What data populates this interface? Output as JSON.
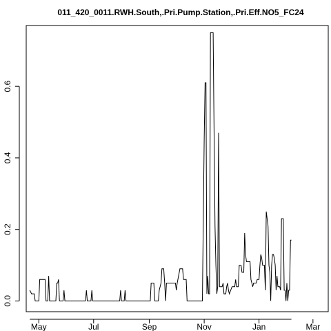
{
  "chart_data": {
    "type": "line",
    "title": "011_420_0011.RWH.South,.Pri.Pump.Station,.Pri.Eff.NO5_FC24",
    "xlabel": "",
    "ylabel": "",
    "x_axis": {
      "kind": "date",
      "range": [
        "2023-04-17",
        "2024-03-18"
      ],
      "ticks": [
        {
          "label": "May",
          "date": "2023-05-01"
        },
        {
          "label": "Jul",
          "date": "2023-07-01"
        },
        {
          "label": "Sep",
          "date": "2023-09-01"
        },
        {
          "label": "Nov",
          "date": "2023-11-01"
        },
        {
          "label": "Jan",
          "date": "2024-01-01"
        },
        {
          "label": "Mar",
          "date": "2024-03-01"
        }
      ]
    },
    "y_axis": {
      "range": [
        -0.03,
        0.77
      ],
      "ticks": [
        {
          "label": "0.0",
          "value": 0.0
        },
        {
          "label": "0.2",
          "value": 0.2
        },
        {
          "label": "0.4",
          "value": 0.4
        },
        {
          "label": "0.6",
          "value": 0.6
        }
      ]
    },
    "grid": false,
    "legend": "none",
    "series": [
      {
        "color": "#000000",
        "points": [
          [
            "2023-04-21",
            0.03
          ],
          [
            "2023-04-23",
            0.02
          ],
          [
            "2023-04-26",
            0.02
          ],
          [
            "2023-04-27",
            0.0
          ],
          [
            "2023-05-01",
            0.0
          ],
          [
            "2023-05-02",
            0.06
          ],
          [
            "2023-05-08",
            0.06
          ],
          [
            "2023-05-09",
            0.0
          ],
          [
            "2023-05-11",
            0.0
          ],
          [
            "2023-05-12",
            0.07
          ],
          [
            "2023-05-13",
            0.0
          ],
          [
            "2023-05-20",
            0.0
          ],
          [
            "2023-05-21",
            0.05
          ],
          [
            "2023-05-22",
            0.05
          ],
          [
            "2023-05-23",
            0.06
          ],
          [
            "2023-05-24",
            0.0
          ],
          [
            "2023-05-28",
            0.0
          ],
          [
            "2023-05-29",
            0.03
          ],
          [
            "2023-05-30",
            0.0
          ],
          [
            "2023-06-22",
            0.0
          ],
          [
            "2023-06-23",
            0.03
          ],
          [
            "2023-06-24",
            0.0
          ],
          [
            "2023-06-28",
            0.0
          ],
          [
            "2023-06-29",
            0.03
          ],
          [
            "2023-06-30",
            0.0
          ],
          [
            "2023-07-30",
            0.0
          ],
          [
            "2023-07-31",
            0.03
          ],
          [
            "2023-08-01",
            0.0
          ],
          [
            "2023-08-04",
            0.0
          ],
          [
            "2023-08-05",
            0.03
          ],
          [
            "2023-08-06",
            0.0
          ],
          [
            "2023-09-02",
            0.0
          ],
          [
            "2023-09-03",
            0.05
          ],
          [
            "2023-09-06",
            0.05
          ],
          [
            "2023-09-07",
            0.0
          ],
          [
            "2023-09-11",
            0.0
          ],
          [
            "2023-09-12",
            0.03
          ],
          [
            "2023-09-14",
            0.05
          ],
          [
            "2023-09-15",
            0.09
          ],
          [
            "2023-09-17",
            0.09
          ],
          [
            "2023-09-18",
            0.05
          ],
          [
            "2023-09-19",
            0.0
          ],
          [
            "2023-09-20",
            0.05
          ],
          [
            "2023-09-30",
            0.05
          ],
          [
            "2023-10-01",
            0.03
          ],
          [
            "2023-10-02",
            0.05
          ],
          [
            "2023-10-05",
            0.09
          ],
          [
            "2023-10-08",
            0.09
          ],
          [
            "2023-10-09",
            0.06
          ],
          [
            "2023-10-12",
            0.06
          ],
          [
            "2023-10-13",
            0.0
          ],
          [
            "2023-10-30",
            0.0
          ],
          [
            "2023-11-01",
            0.45
          ],
          [
            "2023-11-02",
            0.61
          ],
          [
            "2023-11-03",
            0.61
          ],
          [
            "2023-11-04",
            0.02
          ],
          [
            "2023-11-05",
            0.07
          ],
          [
            "2023-11-06",
            0.02
          ],
          [
            "2023-11-07",
            0.02
          ],
          [
            "2023-11-08",
            0.75
          ],
          [
            "2023-11-11",
            0.75
          ],
          [
            "2023-11-12",
            0.48
          ],
          [
            "2023-11-13",
            0.21
          ],
          [
            "2023-11-14",
            0.1
          ],
          [
            "2023-11-15",
            0.02
          ],
          [
            "2023-11-16",
            0.04
          ],
          [
            "2023-11-17",
            0.47
          ],
          [
            "2023-11-18",
            0.04
          ],
          [
            "2023-11-21",
            0.04
          ],
          [
            "2023-11-22",
            0.05
          ],
          [
            "2023-11-23",
            0.02
          ],
          [
            "2023-11-25",
            0.02
          ],
          [
            "2023-11-26",
            0.04
          ],
          [
            "2023-11-27",
            0.05
          ],
          [
            "2023-11-28",
            0.03
          ],
          [
            "2023-11-29",
            0.02
          ],
          [
            "2023-12-02",
            0.04
          ],
          [
            "2023-12-05",
            0.04
          ],
          [
            "2023-12-06",
            0.06
          ],
          [
            "2023-12-07",
            0.04
          ],
          [
            "2023-12-09",
            0.04
          ],
          [
            "2023-12-10",
            0.1
          ],
          [
            "2023-12-12",
            0.1
          ],
          [
            "2023-12-13",
            0.08
          ],
          [
            "2023-12-15",
            0.08
          ],
          [
            "2023-12-16",
            0.19
          ],
          [
            "2023-12-17",
            0.13
          ],
          [
            "2023-12-18",
            0.11
          ],
          [
            "2023-12-22",
            0.11
          ],
          [
            "2023-12-23",
            0.06
          ],
          [
            "2023-12-24",
            0.05
          ],
          [
            "2023-12-25",
            0.04
          ],
          [
            "2023-12-26",
            0.05
          ],
          [
            "2023-12-29",
            0.05
          ],
          [
            "2023-12-30",
            0.06
          ],
          [
            "2024-01-01",
            0.06
          ],
          [
            "2024-01-02",
            0.1
          ],
          [
            "2024-01-03",
            0.13
          ],
          [
            "2024-01-04",
            0.12
          ],
          [
            "2024-01-05",
            0.1
          ],
          [
            "2024-01-07",
            0.1
          ],
          [
            "2024-01-08",
            0.03
          ],
          [
            "2024-01-09",
            0.25
          ],
          [
            "2024-01-11",
            0.21
          ],
          [
            "2024-01-12",
            0.1
          ],
          [
            "2024-01-13",
            0.08
          ],
          [
            "2024-01-14",
            0.0
          ],
          [
            "2024-01-15",
            0.1
          ],
          [
            "2024-01-16",
            0.13
          ],
          [
            "2024-01-17",
            0.13
          ],
          [
            "2024-01-18",
            0.12
          ],
          [
            "2024-01-19",
            0.1
          ],
          [
            "2024-01-20",
            0.03
          ],
          [
            "2024-01-21",
            0.07
          ],
          [
            "2024-01-22",
            0.04
          ],
          [
            "2024-01-24",
            0.04
          ],
          [
            "2024-01-25",
            0.03
          ],
          [
            "2024-01-26",
            0.23
          ],
          [
            "2024-01-28",
            0.23
          ],
          [
            "2024-01-29",
            0.03
          ],
          [
            "2024-01-30",
            0.03
          ],
          [
            "2024-01-31",
            0.0
          ],
          [
            "2024-02-01",
            0.05
          ],
          [
            "2024-02-02",
            0.0
          ],
          [
            "2024-02-03",
            0.03
          ],
          [
            "2024-02-04",
            0.03
          ],
          [
            "2024-02-05",
            0.17
          ],
          [
            "2024-02-06",
            0.17
          ]
        ]
      }
    ]
  }
}
